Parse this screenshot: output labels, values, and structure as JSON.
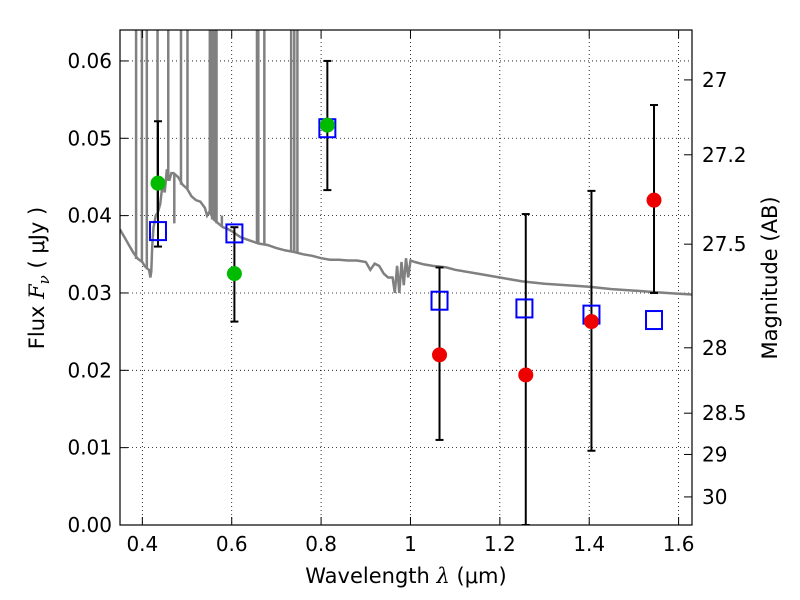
{
  "chart_data": {
    "type": "scatter",
    "xlabel": {
      "prefix": "Wavelength  ",
      "symbol": "λ",
      "unit": " (μm)"
    },
    "ylabel": {
      "prefix": "Flux  ",
      "symbol": "F",
      "subscript": "ν",
      "unit": "  ( μJy )"
    },
    "y2label": "Magnitude (AB)",
    "xlim": [
      0.35,
      1.63
    ],
    "ylim": [
      0.0,
      0.064
    ],
    "grid": true,
    "x_ticks": [
      {
        "value": 0.4,
        "label": "0.4"
      },
      {
        "value": 0.6,
        "label": "0.6"
      },
      {
        "value": 0.8,
        "label": "0.8"
      },
      {
        "value": 1.0,
        "label": "1"
      },
      {
        "value": 1.2,
        "label": "1.2"
      },
      {
        "value": 1.4,
        "label": "1.4"
      },
      {
        "value": 1.6,
        "label": "1.6"
      }
    ],
    "y_ticks": [
      {
        "value": 0.0,
        "label": "0.00"
      },
      {
        "value": 0.01,
        "label": "0.01"
      },
      {
        "value": 0.02,
        "label": "0.02"
      },
      {
        "value": 0.03,
        "label": "0.03"
      },
      {
        "value": 0.04,
        "label": "0.04"
      },
      {
        "value": 0.05,
        "label": "0.05"
      },
      {
        "value": 0.06,
        "label": "0.06"
      }
    ],
    "y2_ticks": [
      {
        "label": "27"
      },
      {
        "label": "27.2"
      },
      {
        "label": "27.5"
      },
      {
        "label": "28"
      },
      {
        "label": "28.5"
      },
      {
        "label": "29"
      },
      {
        "label": "30"
      }
    ],
    "colors": {
      "model": "#808080",
      "model_points": "#0000ff",
      "green_points": "#00bb00",
      "red_points": "#ee0000",
      "errorbars": "#000000"
    },
    "model_points": [
      {
        "x": 0.435,
        "y": 0.038
      },
      {
        "x": 0.606,
        "y": 0.0377
      },
      {
        "x": 0.814,
        "y": 0.0513
      },
      {
        "x": 1.065,
        "y": 0.029
      },
      {
        "x": 1.255,
        "y": 0.028
      },
      {
        "x": 1.405,
        "y": 0.0272
      },
      {
        "x": 1.545,
        "y": 0.0265
      }
    ],
    "observed_green": [
      {
        "x": 0.435,
        "y": 0.0442,
        "ylo": 0.036,
        "yhi": 0.0522
      },
      {
        "x": 0.606,
        "y": 0.0325,
        "ylo": 0.0263,
        "yhi": 0.0385
      },
      {
        "x": 0.814,
        "y": 0.0517,
        "ylo": 0.0433,
        "yhi": 0.06
      }
    ],
    "observed_red": [
      {
        "x": 1.065,
        "y": 0.022,
        "ylo": 0.011,
        "yhi": 0.0333
      },
      {
        "x": 1.258,
        "y": 0.0194,
        "ylo": 0.0,
        "yhi": 0.0402
      },
      {
        "x": 1.405,
        "y": 0.0263,
        "ylo": 0.0096,
        "yhi": 0.0432
      },
      {
        "x": 1.545,
        "y": 0.042,
        "ylo": 0.03,
        "yhi": 0.0543
      }
    ],
    "model_spectrum": [
      [
        0.35,
        0.0382
      ],
      [
        0.36,
        0.0372
      ],
      [
        0.37,
        0.0362
      ],
      [
        0.38,
        0.0352
      ],
      [
        0.39,
        0.0344
      ],
      [
        0.4,
        0.034
      ],
      [
        0.405,
        0.0335
      ],
      [
        0.41,
        0.0332
      ],
      [
        0.415,
        0.033
      ],
      [
        0.418,
        0.032
      ],
      [
        0.42,
        0.0328
      ],
      [
        0.422,
        0.036
      ],
      [
        0.425,
        0.0385
      ],
      [
        0.43,
        0.04
      ],
      [
        0.435,
        0.0405
      ],
      [
        0.44,
        0.0415
      ],
      [
        0.445,
        0.044
      ],
      [
        0.45,
        0.043
      ],
      [
        0.455,
        0.046
      ],
      [
        0.46,
        0.0445
      ],
      [
        0.465,
        0.0455
      ],
      [
        0.47,
        0.0455
      ],
      [
        0.48,
        0.045
      ],
      [
        0.49,
        0.044
      ],
      [
        0.5,
        0.0435
      ],
      [
        0.51,
        0.0425
      ],
      [
        0.52,
        0.042
      ],
      [
        0.53,
        0.0418
      ],
      [
        0.54,
        0.041
      ],
      [
        0.545,
        0.04
      ],
      [
        0.55,
        0.0405
      ],
      [
        0.56,
        0.0395
      ],
      [
        0.57,
        0.039
      ],
      [
        0.58,
        0.0385
      ],
      [
        0.59,
        0.0383
      ],
      [
        0.6,
        0.038
      ],
      [
        0.62,
        0.0372
      ],
      [
        0.64,
        0.0368
      ],
      [
        0.66,
        0.0364
      ],
      [
        0.68,
        0.0362
      ],
      [
        0.7,
        0.0358
      ],
      [
        0.72,
        0.0355
      ],
      [
        0.74,
        0.0353
      ],
      [
        0.76,
        0.035
      ],
      [
        0.78,
        0.0348
      ],
      [
        0.8,
        0.0345
      ],
      [
        0.82,
        0.0343
      ],
      [
        0.84,
        0.0343
      ],
      [
        0.86,
        0.0342
      ],
      [
        0.88,
        0.0342
      ],
      [
        0.9,
        0.034
      ],
      [
        0.91,
        0.033
      ],
      [
        0.92,
        0.0338
      ],
      [
        0.93,
        0.0335
      ],
      [
        0.94,
        0.0325
      ],
      [
        0.95,
        0.032
      ],
      [
        0.96,
        0.032
      ],
      [
        0.965,
        0.03
      ],
      [
        0.97,
        0.0335
      ],
      [
        0.975,
        0.03
      ],
      [
        0.98,
        0.034
      ],
      [
        0.985,
        0.031
      ],
      [
        0.99,
        0.0345
      ],
      [
        0.995,
        0.032
      ],
      [
        1.0,
        0.0342
      ],
      [
        1.01,
        0.034
      ],
      [
        1.03,
        0.0337
      ],
      [
        1.05,
        0.0335
      ],
      [
        1.08,
        0.0333
      ],
      [
        1.1,
        0.033
      ],
      [
        1.15,
        0.0325
      ],
      [
        1.2,
        0.032
      ],
      [
        1.25,
        0.0315
      ],
      [
        1.3,
        0.0312
      ],
      [
        1.35,
        0.031
      ],
      [
        1.4,
        0.0308
      ],
      [
        1.45,
        0.0305
      ],
      [
        1.5,
        0.0303
      ],
      [
        1.55,
        0.0301
      ],
      [
        1.6,
        0.0299
      ],
      [
        1.63,
        0.0298
      ]
    ],
    "spectrum_emission_lines": [
      [
        0.386,
        0.064
      ],
      [
        0.399,
        0.064
      ],
      [
        0.41,
        0.064
      ],
      [
        0.434,
        0.064
      ],
      [
        0.458,
        0.064
      ],
      [
        0.4715,
        0.039
      ],
      [
        0.4865,
        0.064
      ],
      [
        0.501,
        0.064
      ],
      [
        0.524,
        0.042
      ],
      [
        0.551,
        0.064
      ],
      [
        0.556,
        0.064
      ],
      [
        0.561,
        0.064
      ],
      [
        0.566,
        0.064
      ],
      [
        0.578,
        0.04
      ],
      [
        0.6565,
        0.064
      ],
      [
        0.6595,
        0.064
      ],
      [
        0.673,
        0.064
      ],
      [
        0.733,
        0.064
      ],
      [
        0.74,
        0.064
      ],
      [
        0.747,
        0.064
      ]
    ]
  }
}
